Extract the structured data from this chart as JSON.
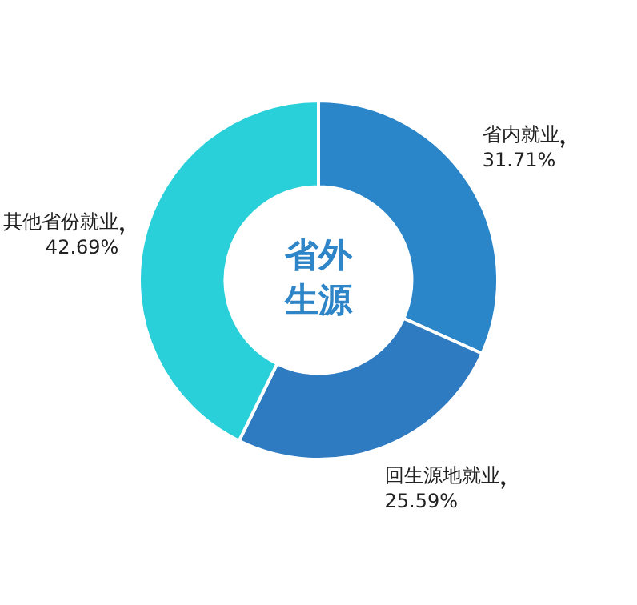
{
  "chart_data": {
    "type": "donut",
    "title": "省外生源",
    "categories": [
      "省内就业",
      "回生源地就业",
      "其他省份就业"
    ],
    "values": [
      31.71,
      25.59,
      42.69
    ],
    "value_labels": [
      "31.71%",
      "25.59%",
      "42.69%"
    ],
    "colors": [
      "#2a86c9",
      "#2e7bc2",
      "#29cfd9"
    ],
    "legend": false
  }
}
